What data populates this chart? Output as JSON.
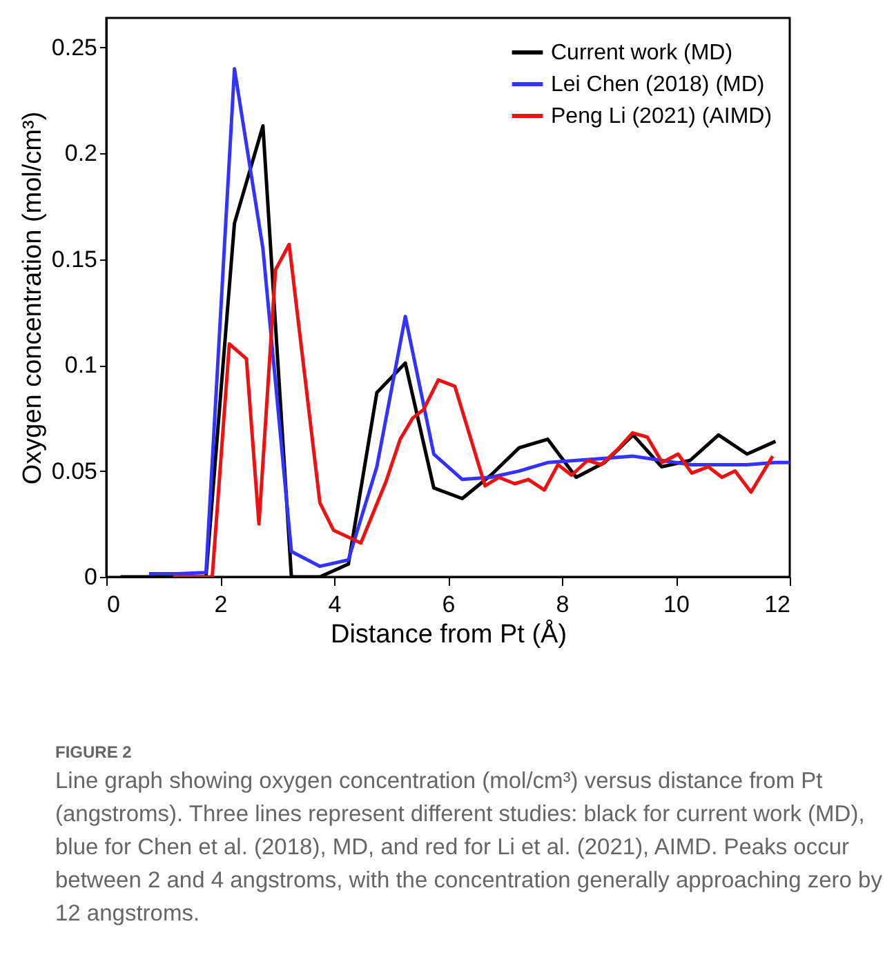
{
  "chart_data": {
    "type": "line",
    "xlabel": "Distance from Pt (Å)",
    "ylabel": "Oxygen concentration (mol/cm³)",
    "xlim": [
      0,
      12
    ],
    "xticks": [
      0,
      2,
      4,
      6,
      8,
      10,
      12
    ],
    "ylim": [
      0,
      0.264
    ],
    "yticks": [
      {
        "value": 0,
        "label": "0"
      },
      0.05,
      {
        "value": 0.1,
        "label": "0.1"
      },
      0.15,
      {
        "value": 0.2,
        "label": "0.2"
      },
      0.25
    ],
    "legend": "top right",
    "grid": false,
    "line_style": "solid",
    "marker": "none",
    "annotations": [
      "FIGURE 2",
      "Line graph showing oxygen concentration (mol/cm³) versus distance from Pt (angstroms). Three lines represent different studies: black for current work (MD), blue for Chen et al. (2018), MD, and red for Li et al. (2021), AIMD. Peaks occur between 2 and 4 angstroms, with the concentration generally approaching zero by 12 angstroms."
    ],
    "series": [
      {
        "name": "Current work (MD)",
        "color": "#000000",
        "x": [
          0.25,
          0.75,
          1.25,
          1.75,
          2.25,
          2.75,
          3.25,
          3.75,
          4.25,
          4.75,
          5.25,
          5.75,
          6.25,
          6.75,
          7.25,
          7.75,
          8.25,
          8.75,
          9.25,
          9.75,
          10.25,
          10.75,
          11.25,
          11.75
        ],
        "values": [
          0,
          0,
          0,
          0,
          0.167,
          0.213,
          0,
          0,
          0.006,
          0.087,
          0.101,
          0.042,
          0.037,
          0.048,
          0.061,
          0.065,
          0.047,
          0.054,
          0.067,
          0.052,
          0.055,
          0.067,
          0.058,
          0.064
        ]
      },
      {
        "name": "Lei Chen (2018) (MD)",
        "color": "#3333ff",
        "x": [
          0.75,
          1.25,
          1.75,
          2.25,
          2.75,
          3.25,
          3.75,
          4.25,
          4.75,
          5.25,
          5.75,
          6.25,
          6.75,
          7.25,
          7.75,
          8.25,
          8.75,
          9.25,
          9.75,
          10.25,
          10.75,
          11.25,
          11.75,
          12
        ],
        "values": [
          0.0015,
          0.0015,
          0.002,
          0.24,
          0.155,
          0.012,
          0.005,
          0.008,
          0.052,
          0.123,
          0.058,
          0.046,
          0.047,
          0.05,
          0.054,
          0.055,
          0.056,
          0.057,
          0.055,
          0.053,
          0.053,
          0.053,
          0.054,
          0.054
        ]
      },
      {
        "name": "Peng Li (2021) (AIMD)",
        "color": "#ee1111",
        "x": [
          1.17,
          1.86,
          2.16,
          2.46,
          2.68,
          2.97,
          3.21,
          3.75,
          3.99,
          4.47,
          4.91,
          5.16,
          5.38,
          5.57,
          5.83,
          6.12,
          6.65,
          6.89,
          7.17,
          7.41,
          7.69,
          7.93,
          8.17,
          8.45,
          8.69,
          8.97,
          9.24,
          9.5,
          9.76,
          10.04,
          10.28,
          10.57,
          10.81,
          11.04,
          11.32,
          11.7
        ],
        "values": [
          0,
          0,
          0.11,
          0.103,
          0.025,
          0.145,
          0.157,
          0.035,
          0.022,
          0.016,
          0.045,
          0.065,
          0.075,
          0.079,
          0.093,
          0.09,
          0.043,
          0.047,
          0.044,
          0.046,
          0.041,
          0.053,
          0.048,
          0.055,
          0.053,
          0.06,
          0.068,
          0.066,
          0.054,
          0.058,
          0.049,
          0.052,
          0.047,
          0.05,
          0.04,
          0.057
        ]
      }
    ]
  }
}
